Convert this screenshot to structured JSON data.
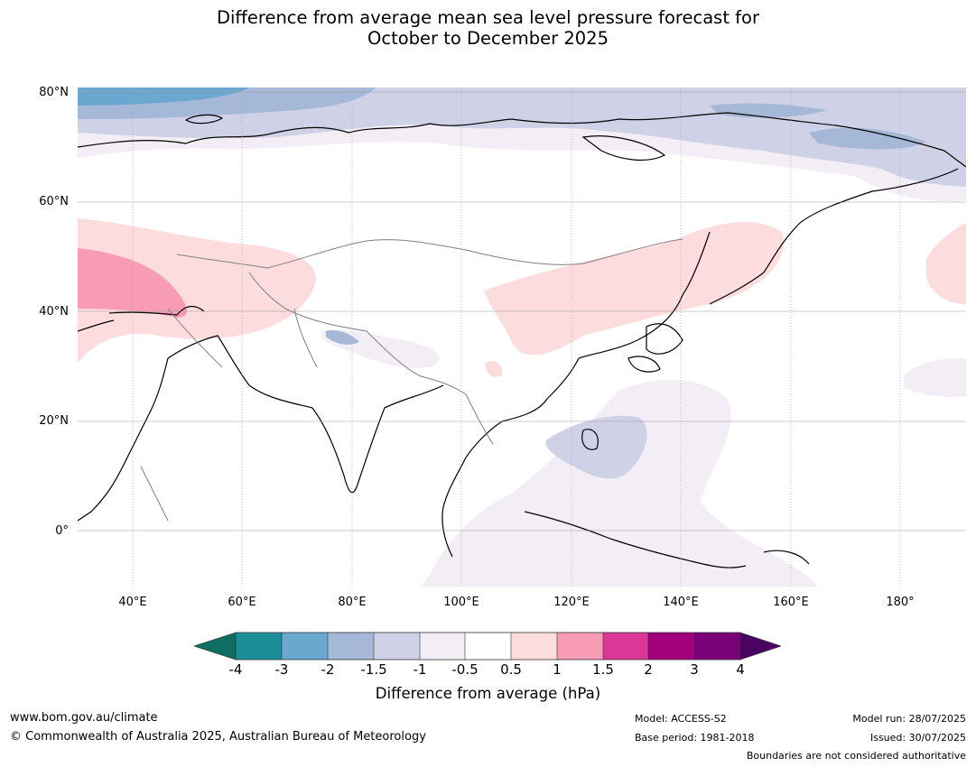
{
  "title": {
    "line1": "Difference from average mean sea level pressure forecast for",
    "line2": "October to December 2025"
  },
  "map": {
    "lat_labels": [
      "80°N",
      "60°N",
      "40°N",
      "20°N",
      "0°"
    ],
    "lon_labels": [
      "40°E",
      "60°E",
      "80°E",
      "100°E",
      "120°E",
      "140°E",
      "160°E",
      "180°"
    ],
    "region": "Asia and western Pacific",
    "lat_range": [
      -10,
      81
    ],
    "lon_range": [
      30,
      192
    ]
  },
  "colorbar": {
    "label": "Difference from average (hPa)",
    "ticks": [
      "-4",
      "-3",
      "-2",
      "-1.5",
      "-1",
      "-0.5",
      "0.5",
      "1",
      "1.5",
      "2",
      "3",
      "4"
    ],
    "colors": [
      "#0e6e61",
      "#1a8f97",
      "#6aa8d0",
      "#a6b8d7",
      "#cfd1e6",
      "#f3edf6",
      "#ffffff",
      "#fddcde",
      "#f89cb6",
      "#d93897",
      "#a3007d",
      "#7a0077",
      "#4b0063"
    ],
    "under_color": "#0e6e61",
    "over_color": "#4b0063"
  },
  "footer": {
    "website": "www.bom.gov.au/climate",
    "copyright": "© Commonwealth of Australia 2025, Australian Bureau of Meteorology",
    "model": "Model: ACCESS-S2",
    "base_period": "Base period: 1981-2018",
    "model_run": "Model run: 28/07/2025",
    "issued": "Issued: 30/07/2025",
    "disclaimer": "Boundaries are not considered authoritative"
  }
}
